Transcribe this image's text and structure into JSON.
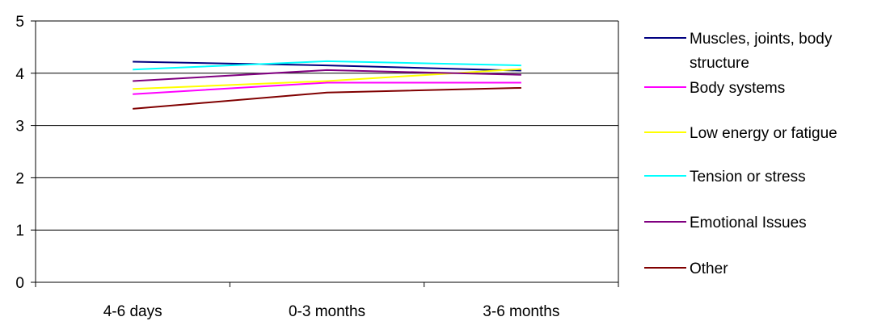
{
  "chart_data": {
    "type": "line",
    "categories": [
      "4-6 days",
      "0-3 months",
      "3-6 months"
    ],
    "ylim": [
      0,
      5
    ],
    "yticks": [
      0,
      1,
      2,
      3,
      4,
      5
    ],
    "grid": "horizontal",
    "legend_position": "right",
    "series": [
      {
        "name": "Muscles, joints, body structure",
        "name_lines": [
          "Muscles, joints, body",
          "structure"
        ],
        "color": "#000080",
        "values": [
          4.22,
          4.15,
          4.05
        ]
      },
      {
        "name": "Body systems",
        "name_lines": [
          "Body systems"
        ],
        "color": "#ff00ff",
        "values": [
          3.6,
          3.82,
          3.82
        ]
      },
      {
        "name": "Low energy or fatigue",
        "name_lines": [
          "Low energy or fatigue"
        ],
        "color": "#ffff00",
        "values": [
          3.7,
          3.85,
          4.08
        ]
      },
      {
        "name": "Tension or stress",
        "name_lines": [
          "Tension or stress"
        ],
        "color": "#00ffff",
        "values": [
          4.07,
          4.23,
          4.15
        ]
      },
      {
        "name": "Emotional Issues",
        "name_lines": [
          "Emotional Issues"
        ],
        "color": "#800080",
        "values": [
          3.85,
          4.06,
          3.97
        ]
      },
      {
        "name": "Other",
        "name_lines": [
          "Other"
        ],
        "color": "#800000",
        "values": [
          3.32,
          3.63,
          3.72
        ]
      }
    ]
  }
}
